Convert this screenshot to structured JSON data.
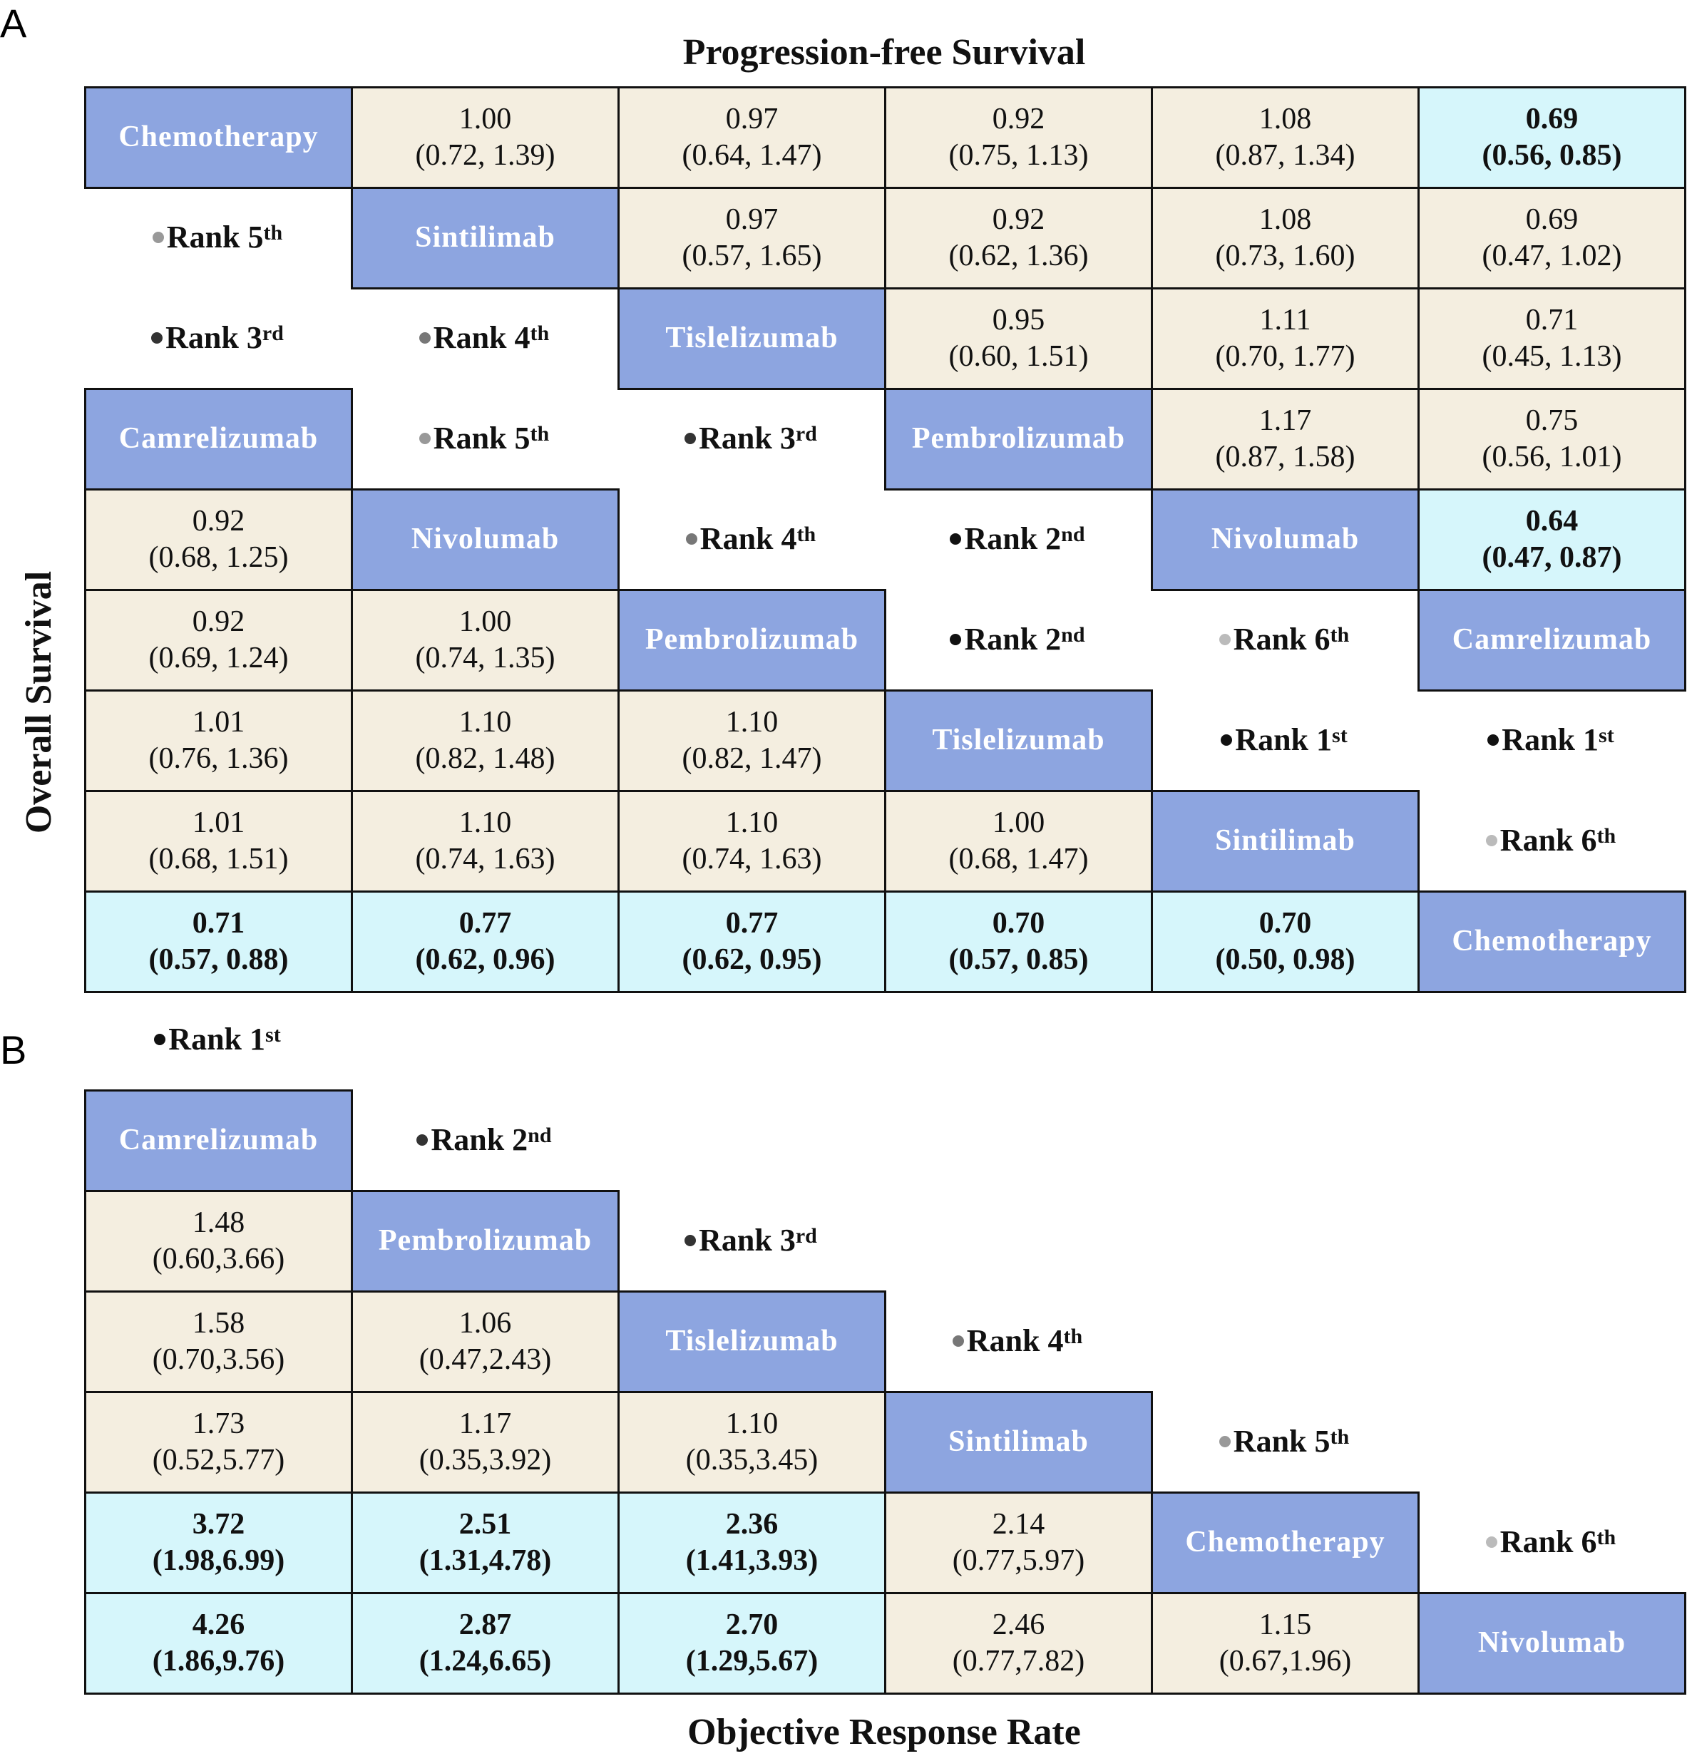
{
  "panelA": {
    "letter": "A",
    "top_title": "Progression-free Survival",
    "side_title": "Overall Survival",
    "diagonal": [
      "Chemotherapy",
      "Sintilimab",
      "Tislelizumab",
      "Pembrolizumab",
      "Nivolumab",
      "Camrelizumab"
    ],
    "diagonal_os": [
      "Camrelizumab",
      "Nivolumab",
      "Pembrolizumab",
      "Tislelizumab",
      "Sintilimab",
      "Chemotherapy"
    ],
    "pfs": [
      {
        "r": 0,
        "c": 1,
        "v": "1.00",
        "ci": "(0.72, 1.39)",
        "sig": false
      },
      {
        "r": 0,
        "c": 2,
        "v": "0.97",
        "ci": "(0.64, 1.47)",
        "sig": false
      },
      {
        "r": 0,
        "c": 3,
        "v": "0.92",
        "ci": "(0.75, 1.13)",
        "sig": false
      },
      {
        "r": 0,
        "c": 4,
        "v": "1.08",
        "ci": "(0.87, 1.34)",
        "sig": false
      },
      {
        "r": 0,
        "c": 5,
        "v": "0.69",
        "ci": "(0.56, 0.85)",
        "sig": true
      },
      {
        "r": 1,
        "c": 2,
        "v": "0.97",
        "ci": "(0.57, 1.65)",
        "sig": false
      },
      {
        "r": 1,
        "c": 3,
        "v": "0.92",
        "ci": "(0.62, 1.36)",
        "sig": false
      },
      {
        "r": 1,
        "c": 4,
        "v": "1.08",
        "ci": "(0.73, 1.60)",
        "sig": false
      },
      {
        "r": 1,
        "c": 5,
        "v": "0.69",
        "ci": "(0.47, 1.02)",
        "sig": false
      },
      {
        "r": 2,
        "c": 3,
        "v": "0.95",
        "ci": "(0.60, 1.51)",
        "sig": false
      },
      {
        "r": 2,
        "c": 4,
        "v": "1.11",
        "ci": "(0.70, 1.77)",
        "sig": false
      },
      {
        "r": 2,
        "c": 5,
        "v": "0.71",
        "ci": "(0.45, 1.13)",
        "sig": false
      },
      {
        "r": 3,
        "c": 4,
        "v": "1.17",
        "ci": "(0.87, 1.58)",
        "sig": false
      },
      {
        "r": 3,
        "c": 5,
        "v": "0.75",
        "ci": "(0.56, 1.01)",
        "sig": false
      },
      {
        "r": 4,
        "c": 5,
        "v": "0.64",
        "ci": "(0.47, 0.87)",
        "sig": true
      }
    ],
    "os": [
      {
        "r": 4,
        "c": 0,
        "v": "0.92",
        "ci": "(0.68, 1.25)",
        "sig": false
      },
      {
        "r": 5,
        "c": 0,
        "v": "0.92",
        "ci": "(0.69, 1.24)",
        "sig": false
      },
      {
        "r": 5,
        "c": 1,
        "v": "1.00",
        "ci": "(0.74, 1.35)",
        "sig": false
      },
      {
        "r": 6,
        "c": 0,
        "v": "1.01",
        "ci": "(0.76, 1.36)",
        "sig": false
      },
      {
        "r": 6,
        "c": 1,
        "v": "1.10",
        "ci": "(0.82, 1.48)",
        "sig": false
      },
      {
        "r": 6,
        "c": 2,
        "v": "1.10",
        "ci": "(0.82, 1.47)",
        "sig": false
      },
      {
        "r": 7,
        "c": 0,
        "v": "1.01",
        "ci": "(0.68, 1.51)",
        "sig": false
      },
      {
        "r": 7,
        "c": 1,
        "v": "1.10",
        "ci": "(0.74, 1.63)",
        "sig": false
      },
      {
        "r": 7,
        "c": 2,
        "v": "1.10",
        "ci": "(0.74, 1.63)",
        "sig": false
      },
      {
        "r": 7,
        "c": 3,
        "v": "1.00",
        "ci": "(0.68, 1.47)",
        "sig": false
      },
      {
        "r": 8,
        "c": 0,
        "v": "0.71",
        "ci": "(0.57, 0.88)",
        "sig": true
      },
      {
        "r": 8,
        "c": 1,
        "v": "0.77",
        "ci": "(0.62, 0.96)",
        "sig": true
      },
      {
        "r": 8,
        "c": 2,
        "v": "0.77",
        "ci": "(0.62, 0.95)",
        "sig": true
      },
      {
        "r": 8,
        "c": 3,
        "v": "0.70",
        "ci": "(0.57, 0.85)",
        "sig": true
      },
      {
        "r": 8,
        "c": 4,
        "v": "0.70",
        "ci": "(0.50, 0.98)",
        "sig": true
      }
    ],
    "ranks": [
      {
        "r": 1,
        "c": 0,
        "n": "5",
        "s": "th",
        "shade": 5
      },
      {
        "r": 2,
        "c": 0,
        "n": "3",
        "s": "rd",
        "shade": 2
      },
      {
        "r": 2,
        "c": 1,
        "n": "4",
        "s": "th",
        "shade": 4
      },
      {
        "r": 3,
        "c": 1,
        "n": "5",
        "s": "th",
        "shade": 5
      },
      {
        "r": 3,
        "c": 2,
        "n": "3",
        "s": "rd",
        "shade": 2
      },
      {
        "r": 4,
        "c": 2,
        "n": "4",
        "s": "th",
        "shade": 4
      },
      {
        "r": 4,
        "c": 3,
        "n": "2",
        "s": "nd",
        "shade": 1
      },
      {
        "r": 5,
        "c": 3,
        "n": "2",
        "s": "nd",
        "shade": 1
      },
      {
        "r": 5,
        "c": 4,
        "n": "6",
        "s": "th",
        "shade": 6
      },
      {
        "r": 6,
        "c": 4,
        "n": "1",
        "s": "st",
        "shade": 1
      },
      {
        "r": 6,
        "c": 5,
        "n": "1",
        "s": "st",
        "shade": 1
      },
      {
        "r": 7,
        "c": 5,
        "n": "6",
        "s": "th",
        "shade": 6
      }
    ],
    "rank_word": "Rank"
  },
  "panelB": {
    "letter": "B",
    "bottom_title": "Objective Response Rate",
    "diagonal": [
      "Camrelizumab",
      "Pembrolizumab",
      "Tislelizumab",
      "Sintilimab",
      "Chemotherapy",
      "Nivolumab"
    ],
    "cells": [
      {
        "r": 1,
        "c": 0,
        "v": "1.48",
        "ci": "(0.60,3.66)",
        "sig": false
      },
      {
        "r": 2,
        "c": 0,
        "v": "1.58",
        "ci": "(0.70,3.56)",
        "sig": false
      },
      {
        "r": 2,
        "c": 1,
        "v": "1.06",
        "ci": "(0.47,2.43)",
        "sig": false
      },
      {
        "r": 3,
        "c": 0,
        "v": "1.73",
        "ci": "(0.52,5.77)",
        "sig": false
      },
      {
        "r": 3,
        "c": 1,
        "v": "1.17",
        "ci": "(0.35,3.92)",
        "sig": false
      },
      {
        "r": 3,
        "c": 2,
        "v": "1.10",
        "ci": "(0.35,3.45)",
        "sig": false
      },
      {
        "r": 4,
        "c": 0,
        "v": "3.72",
        "ci": "(1.98,6.99)",
        "sig": true
      },
      {
        "r": 4,
        "c": 1,
        "v": "2.51",
        "ci": "(1.31,4.78)",
        "sig": true
      },
      {
        "r": 4,
        "c": 2,
        "v": "2.36",
        "ci": "(1.41,3.93)",
        "sig": true
      },
      {
        "r": 4,
        "c": 3,
        "v": "2.14",
        "ci": "(0.77,5.97)",
        "sig": false
      },
      {
        "r": 5,
        "c": 0,
        "v": "4.26",
        "ci": "(1.86,9.76)",
        "sig": true
      },
      {
        "r": 5,
        "c": 1,
        "v": "2.87",
        "ci": "(1.24,6.65)",
        "sig": true
      },
      {
        "r": 5,
        "c": 2,
        "v": "2.70",
        "ci": "(1.29,5.67)",
        "sig": true
      },
      {
        "r": 5,
        "c": 3,
        "v": "2.46",
        "ci": "(0.77,7.82)",
        "sig": false
      },
      {
        "r": 5,
        "c": 4,
        "v": "1.15",
        "ci": "(0.67,1.96)",
        "sig": false
      }
    ],
    "ranks": [
      {
        "k": 0,
        "n": "1",
        "s": "st",
        "shade": 1
      },
      {
        "k": 1,
        "n": "2",
        "s": "nd",
        "shade": 2
      },
      {
        "k": 2,
        "n": "3",
        "s": "rd",
        "shade": 2
      },
      {
        "k": 3,
        "n": "4",
        "s": "th",
        "shade": 4
      },
      {
        "k": 4,
        "n": "5",
        "s": "th",
        "shade": 5
      },
      {
        "k": 5,
        "n": "6",
        "s": "th",
        "shade": 6
      }
    ]
  },
  "colors": {
    "drug": "#8da5e0",
    "beige": "#f4eee0",
    "cyan": "#d6f6fb"
  }
}
